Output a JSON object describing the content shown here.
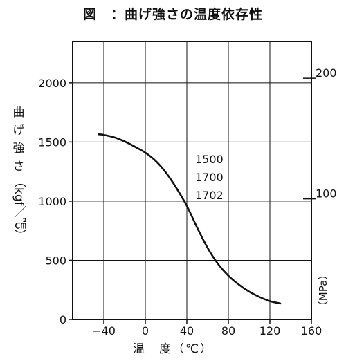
{
  "title": "図　：曲げ強さの温度依存性",
  "chart_data": {
    "type": "line",
    "xlabel": "温　度（℃）",
    "ylabel_left_upright": [
      "曲",
      "げ",
      "強",
      "さ"
    ],
    "ylabel_left_rotated": "（kgf／㎠）",
    "ylabel_right": "（MPa）",
    "xlim": [
      -70,
      160
    ],
    "ylim": [
      0,
      2350
    ],
    "x_ticks": [
      -40,
      0,
      40,
      80,
      120,
      160
    ],
    "x_tick_labels": [
      "−40",
      "0",
      "40",
      "80",
      "120",
      "160"
    ],
    "y_ticks": [
      0,
      500,
      1000,
      1500,
      2000
    ],
    "y_tick_labels": [
      "0",
      "500",
      "1000",
      "1500",
      "2000"
    ],
    "y2_ticks": [
      100,
      200
    ],
    "y2_tick_labels": [
      "100",
      "200"
    ],
    "grid": true,
    "annotation": [
      "1500",
      "1700",
      "1702"
    ],
    "series": [
      {
        "x": [
          -45,
          -40,
          -30,
          -20,
          -10,
          0,
          10,
          20,
          30,
          40,
          50,
          60,
          70,
          80,
          90,
          100,
          110,
          120,
          130
        ],
        "y": [
          1565,
          1560,
          1540,
          1505,
          1460,
          1410,
          1340,
          1240,
          1110,
          960,
          775,
          605,
          470,
          370,
          295,
          235,
          190,
          155,
          135
        ]
      }
    ]
  }
}
